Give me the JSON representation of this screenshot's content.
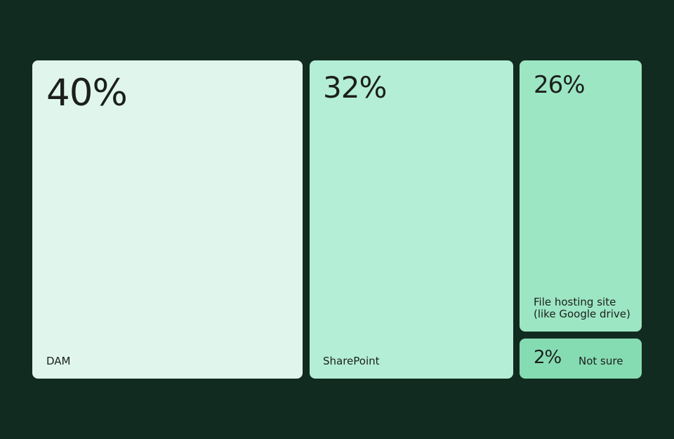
{
  "chart_data": {
    "type": "treemap",
    "title": "",
    "categories": [
      "DAM",
      "SharePoint",
      "File hosting site\n(like Google drive)",
      "Not sure"
    ],
    "values": [
      40,
      32,
      26,
      2
    ],
    "value_labels": [
      "40%",
      "32%",
      "26%",
      "2%"
    ],
    "unit": "%",
    "colors": [
      "#e0f6ec",
      "#b4eed6",
      "#9de6c3",
      "#86dcb2"
    ],
    "background": "#112b20",
    "text_color": "#1b1f1d"
  }
}
